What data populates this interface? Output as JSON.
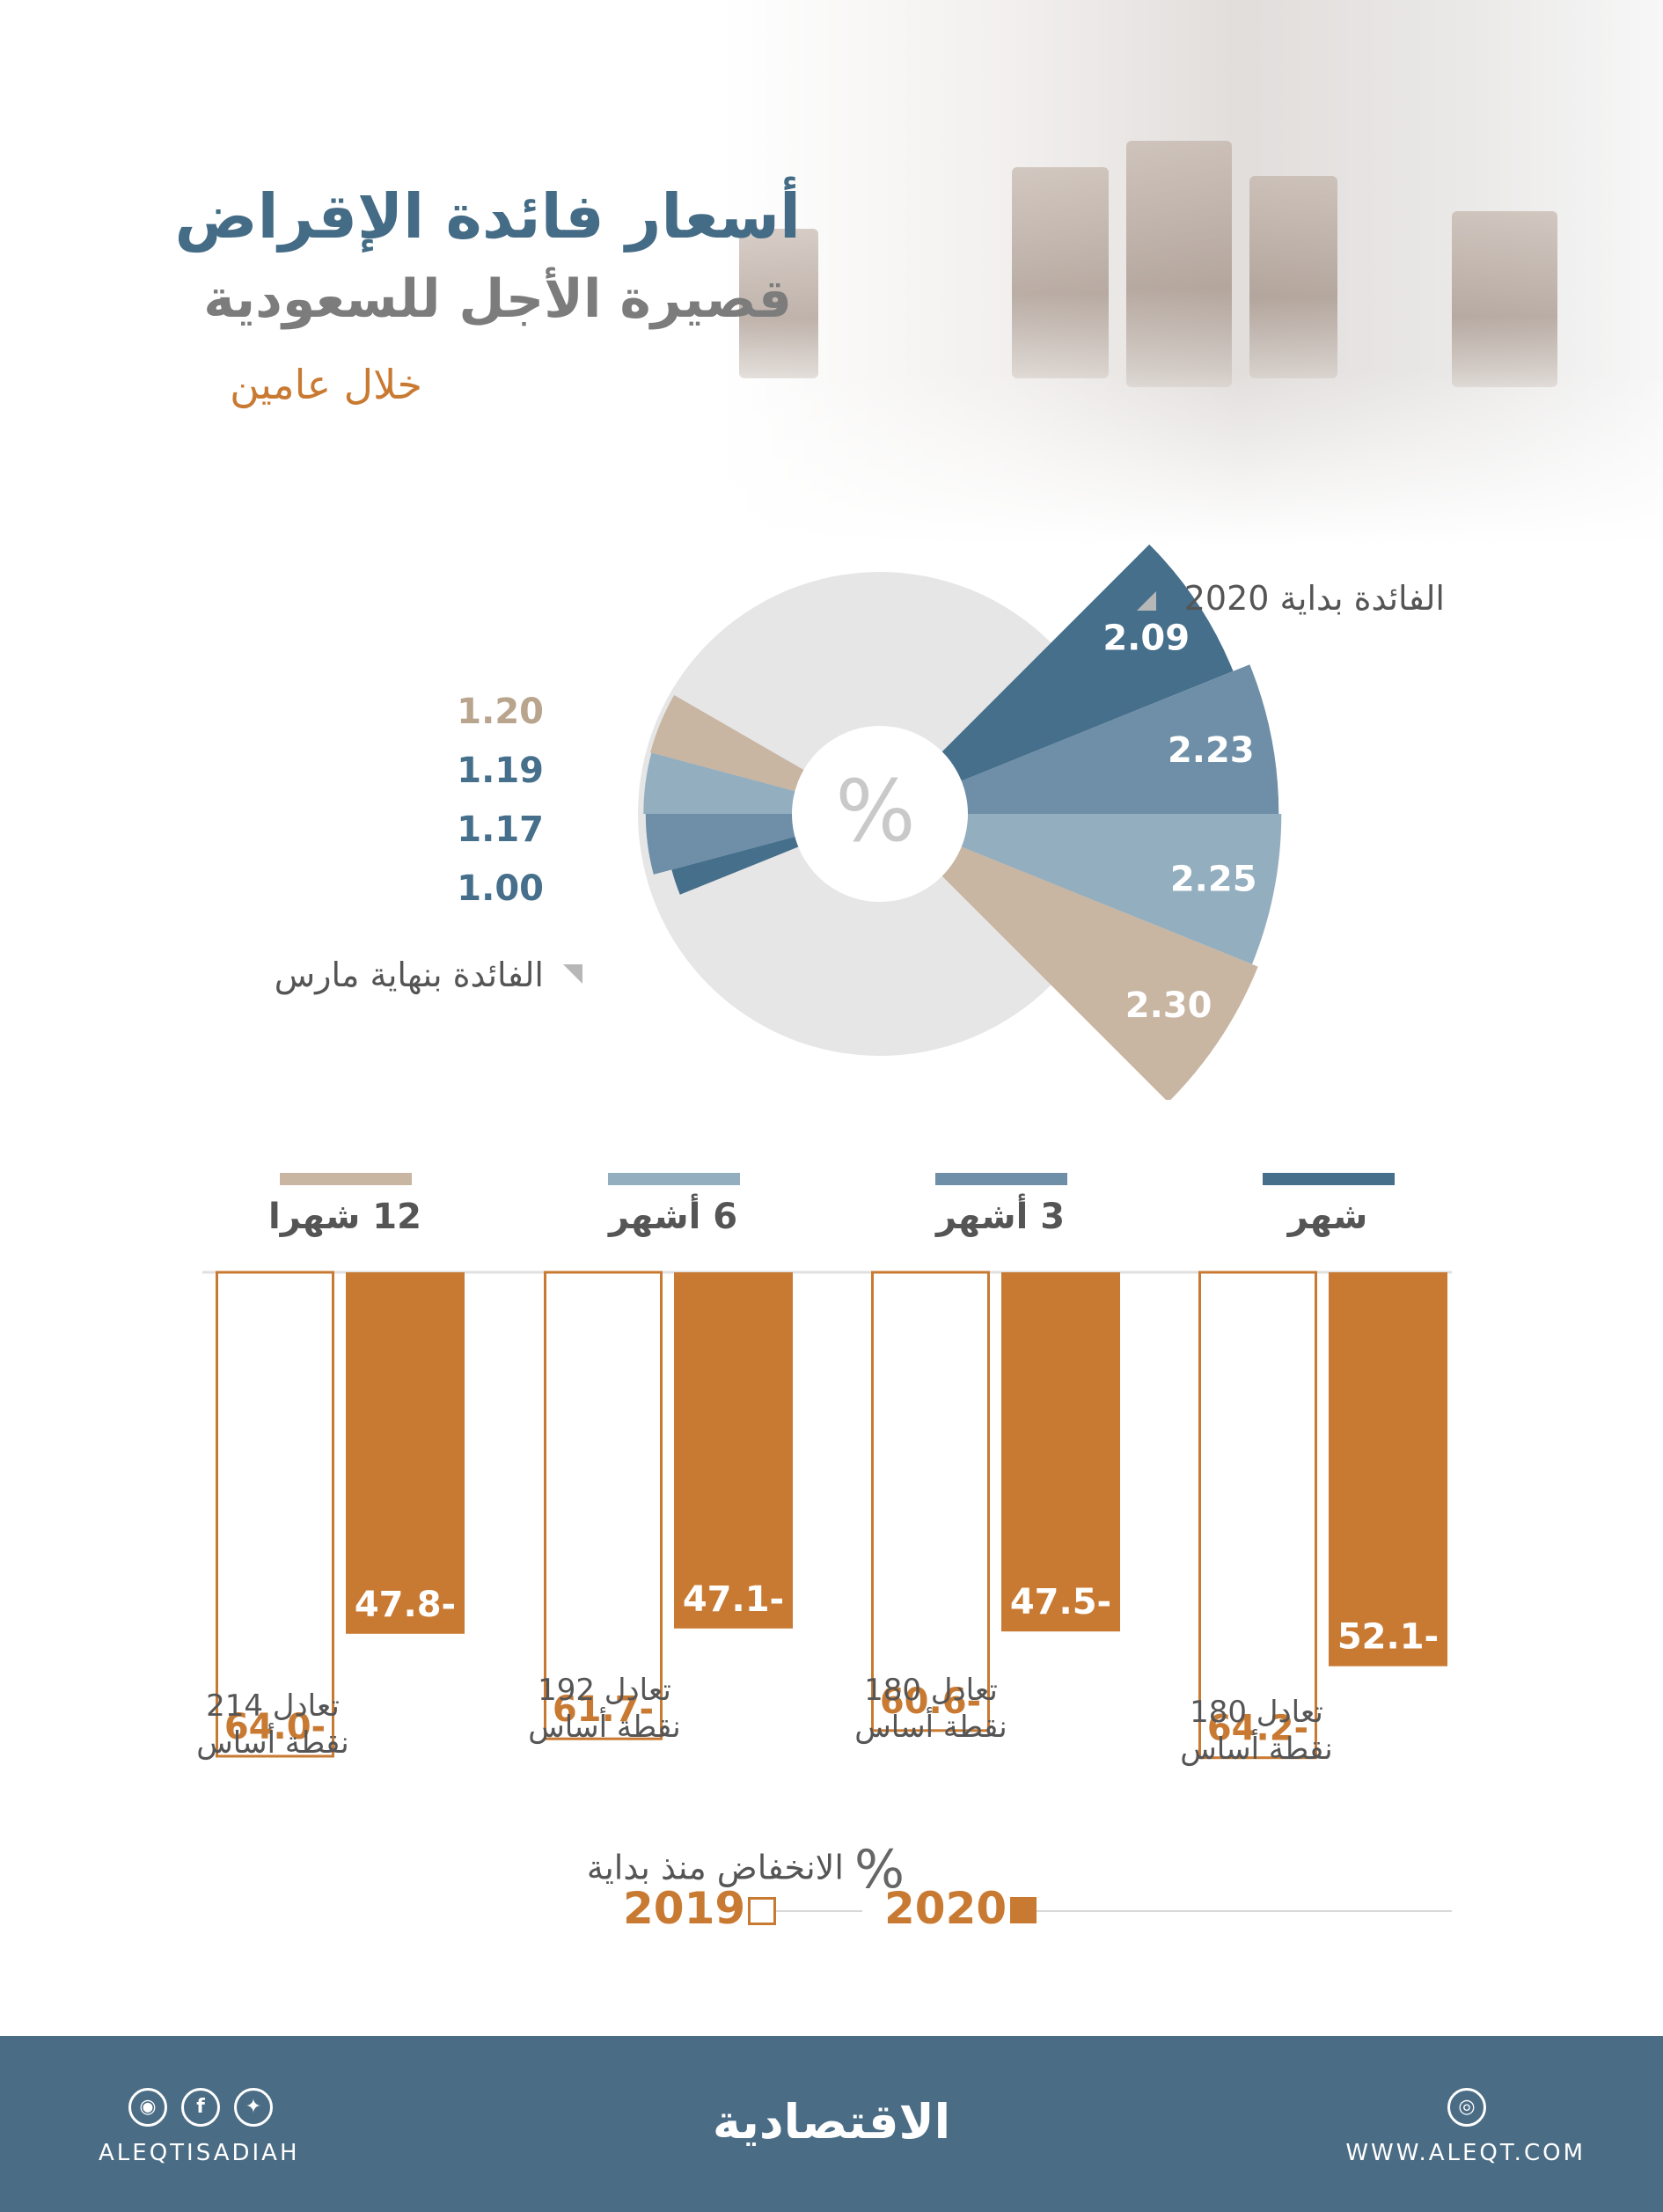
{
  "header": {
    "title_line1": "أسعار فائدة الإقراض",
    "title_line2": "قصيرة الأجل للسعودية",
    "subtitle": "خلال عامين"
  },
  "pie_legend": {
    "start_label": "الفائدة بداية 2020",
    "end_label": "الفائدة بنهاية مارس",
    "center_symbol": "%"
  },
  "colors": {
    "month": "#466f8c",
    "three_months": "#6e8fa7",
    "six_months": "#93aebf",
    "twelve_months": "#c8b5a2",
    "ring": "#e6e6e6",
    "orange": "#c97a32",
    "footer": "#4a6c85"
  },
  "chart_data": [
    {
      "type": "pie",
      "title": "",
      "unit": "%",
      "series": [
        {
          "name": "الفائدة بداية 2020",
          "categories": [
            "شهر",
            "3 أشهر",
            "6 أشهر",
            "12 شهرا"
          ],
          "values": [
            2.09,
            2.23,
            2.25,
            2.3
          ],
          "labels": [
            "2.09",
            "2.23",
            "2.25",
            "2.30"
          ]
        },
        {
          "name": "الفائدة بنهاية مارس",
          "categories": [
            "شهر",
            "3 أشهر",
            "6 أشهر",
            "12 شهرا"
          ],
          "values": [
            1.0,
            1.17,
            1.19,
            1.2
          ],
          "labels": [
            "1.00",
            "1.17",
            "1.19",
            "1.20"
          ]
        }
      ]
    },
    {
      "type": "bar",
      "title": "الانخفاض منذ بداية",
      "unit": "%",
      "categories": [
        "شهر",
        "3 أشهر",
        "6 أشهر",
        "12 شهرا"
      ],
      "series": [
        {
          "name": "2020",
          "values": [
            -52.1,
            -47.5,
            -47.1,
            -47.8
          ],
          "labels": [
            "52.1-",
            "47.5-",
            "47.1-",
            "47.8-"
          ]
        },
        {
          "name": "2019",
          "values": [
            -64.2,
            -60.6,
            -61.7,
            -64.0
          ],
          "labels": [
            "64.2-",
            "60.6-",
            "61.7-",
            "64.0-"
          ]
        }
      ],
      "ylim": [
        -70,
        0
      ],
      "notes": [
        {
          "line1": "تعادل 180",
          "line2": "نقطة أساس"
        },
        {
          "line1": "تعادل 180",
          "line2": "نقطة أساس"
        },
        {
          "line1": "تعادل 192",
          "line2": "نقطة أساس"
        },
        {
          "line1": "تعادل 214",
          "line2": "نقطة أساس"
        }
      ]
    }
  ],
  "legend": {
    "title": "الانخفاض منذ بداية",
    "percent_symbol": "%",
    "year_2020": "2020",
    "year_2019": "2019"
  },
  "footer": {
    "handle": "ALEQTISADIAH",
    "website": "WWW.ALEQT.COM",
    "brand": "الاقتصادية",
    "icons": [
      "instagram-icon",
      "facebook-icon",
      "twitter-icon",
      "dribbble-icon"
    ]
  }
}
